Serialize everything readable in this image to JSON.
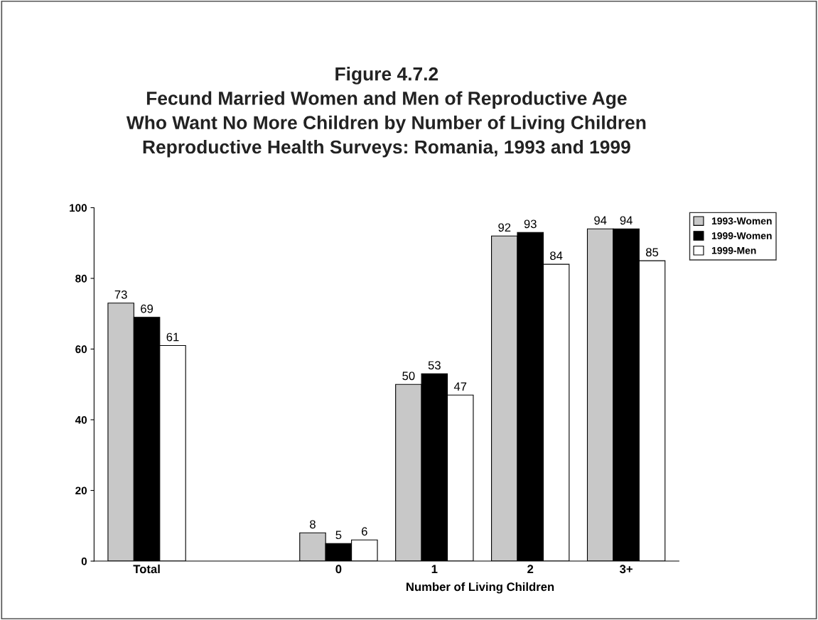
{
  "chart_data": {
    "type": "bar",
    "title": "Figure 4.7.2\nFecund Married Women and Men of Reproductive Age\nWho Want No More Children by Number of Living Children\nReproductive Health Surveys: Romania, 1993 and 1999",
    "xlabel": "Number of Living Children",
    "categories": [
      "Total",
      null,
      "0",
      "1",
      "2",
      "3+"
    ],
    "series": [
      {
        "name": "1993-Women",
        "color": "#c8c8c8",
        "values": [
          73,
          null,
          8,
          50,
          92,
          94
        ]
      },
      {
        "name": "1999-Women",
        "color": "#000000",
        "values": [
          69,
          null,
          5,
          53,
          93,
          94
        ]
      },
      {
        "name": "1999-Men",
        "color": "#ffffff",
        "values": [
          61,
          null,
          6,
          47,
          84,
          85
        ]
      }
    ],
    "ylim": [
      0,
      100
    ],
    "yticks": [
      0,
      20,
      40,
      60,
      80,
      100
    ],
    "data_labels": true,
    "legend": "top right",
    "grid": false
  }
}
